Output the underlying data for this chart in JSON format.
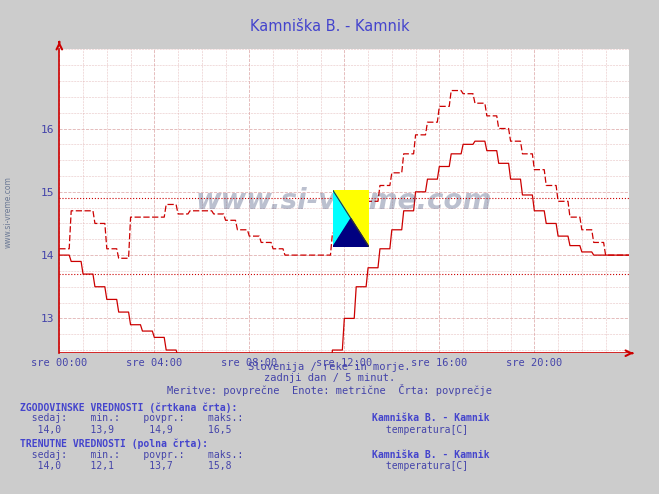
{
  "title": "Kamniška B. - Kamnik",
  "title_color": "#4444cc",
  "bg_color": "#cccccc",
  "plot_bg_color": "#ffffff",
  "grid_color": "#ddaaaa",
  "axis_color": "#cc0000",
  "text_color": "#4444aa",
  "xlabel_lines": [
    "Slovenija / reke in morje.",
    "zadnji dan / 5 minut.",
    "Meritve: povprečne  Enote: metrične  Črta: povprečje"
  ],
  "xtick_labels": [
    "sre 00:00",
    "sre 04:00",
    "sre 08:00",
    "sre 12:00",
    "sre 16:00",
    "sre 20:00"
  ],
  "xtick_positions": [
    0,
    48,
    96,
    144,
    192,
    240
  ],
  "ytick_labels": [
    "13",
    "14",
    "15",
    "16"
  ],
  "ytick_positions": [
    13,
    14,
    15,
    16
  ],
  "ylim": [
    12.45,
    17.0
  ],
  "xlim": [
    0,
    288
  ],
  "n_points": 289,
  "line_color": "#cc0000",
  "dotted_hline_avg_hist": 14.9,
  "dotted_hline_avg_curr": 13.7,
  "watermark": "www.si-vreme.com",
  "footer_hist": "ZGODOVINSKE VREDNOSTI (črtkana črta):",
  "footer_curr": "TRENUTNE VREDNOSTI (polna črta):",
  "footer_cols_label": "  sedaj:    min.:    povpr.:    maks.:",
  "footer_hist_vals": "   14,0     13,9      14,9      16,5",
  "footer_curr_vals": "   14,0     12,1      13,7      15,8",
  "station_name": "Kamniška B. - Kamnik",
  "legend_label": "temperatura[C]"
}
